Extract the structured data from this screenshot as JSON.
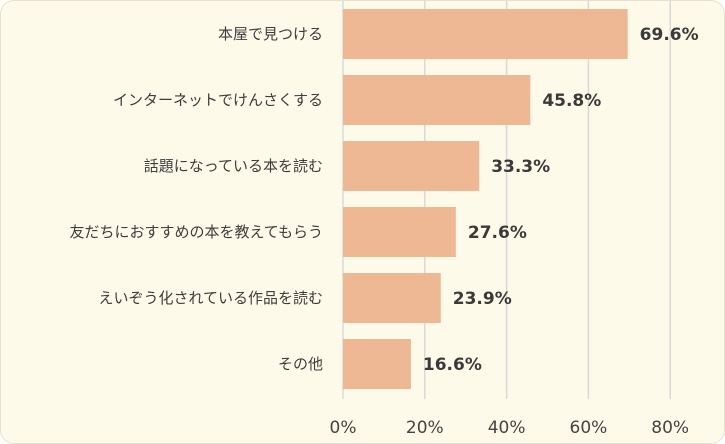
{
  "chart_data": {
    "type": "bar",
    "orientation": "horizontal",
    "categories": [
      "本屋で見つける",
      "インターネットでけんさくする",
      "話題になっている本を読む",
      "友だちにおすすめの本を教えてもらう",
      "えいぞう化されている作品を読む",
      "その他"
    ],
    "values": [
      69.6,
      45.8,
      33.3,
      27.6,
      23.9,
      16.6
    ],
    "value_labels": [
      "69.6%",
      "45.8%",
      "33.3%",
      "27.6%",
      "23.9%",
      "16.6%"
    ],
    "xlim": [
      0,
      80
    ],
    "xticks": [
      0,
      20,
      40,
      60,
      80
    ],
    "xtick_labels": [
      "0%",
      "20%",
      "40%",
      "60%",
      "80%"
    ],
    "grid": true,
    "legend": false,
    "colors": {
      "bar": "#edb893",
      "grid": "#d9d9d9",
      "background": "#fdfaea"
    }
  }
}
